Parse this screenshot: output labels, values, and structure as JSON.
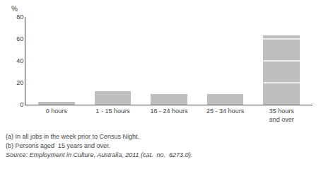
{
  "chart_data": {
    "type": "bar",
    "categories": [
      "0 hours",
      "1 - 15 hours",
      "16 - 24 hours",
      "25 - 34 hours",
      "35 hours\nand over"
    ],
    "values": [
      2.5,
      12.5,
      10.0,
      10.0,
      63.0
    ],
    "color": "#bebebe",
    "dividers": [
      20.0,
      40.0,
      60.0
    ],
    "ylim": [
      0,
      80
    ],
    "yticks": [
      0,
      20,
      40,
      60,
      80
    ],
    "ylabel": "%",
    "footnotes": [
      "(a) In all jobs in the week prior to Census Night.",
      "(b) Persons aged  15 years and over."
    ],
    "source": "Source: Employment in Culture, Australia, 2011 (cat.  no.  6273.0).",
    "grid": false
  }
}
